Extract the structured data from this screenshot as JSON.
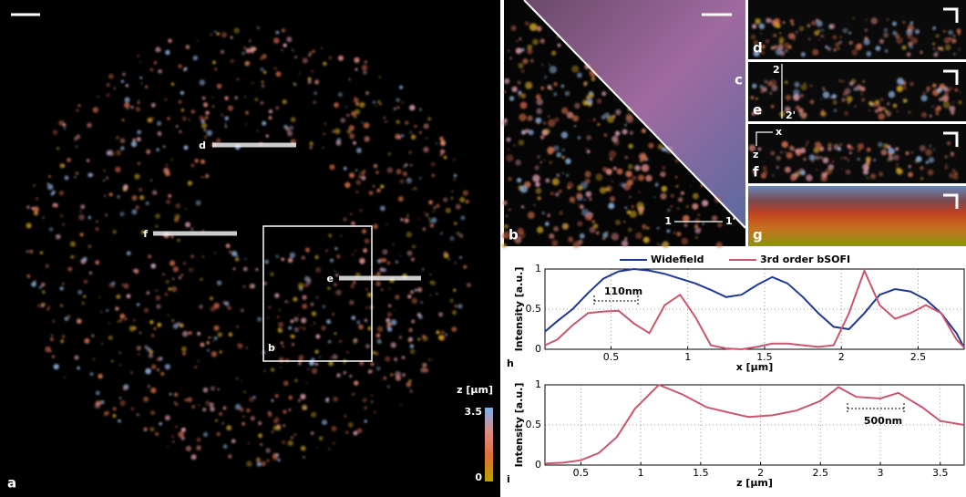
{
  "figure": {
    "panel_a": {
      "label": "a",
      "lines": [
        "d",
        "f",
        "e"
      ],
      "box": "b",
      "colorbar": {
        "label": "z [µm]",
        "ticks": [
          0,
          3.5
        ]
      }
    },
    "panel_b": {
      "label": "b",
      "line_start": "1",
      "line_end": "1'"
    },
    "panel_c": {
      "label": "c"
    },
    "panel_d": {
      "label": "d"
    },
    "panel_e": {
      "label": "e",
      "line_start": "2",
      "line_end": "2'"
    },
    "panel_f": {
      "label": "f",
      "axis_x": "x",
      "axis_z": "z"
    },
    "panel_g": {
      "label": "g"
    }
  },
  "chart_data": [
    {
      "type": "line",
      "label": "h",
      "xlabel": "x [µm]",
      "ylabel": "Intensity [a.u.]",
      "legend": "top",
      "x": [
        0.07,
        0.15,
        0.25,
        0.35,
        0.45,
        0.55,
        0.65,
        0.75,
        0.85,
        0.95,
        1.05,
        1.15,
        1.25,
        1.35,
        1.45,
        1.55,
        1.65,
        1.75,
        1.85,
        1.95,
        2.05,
        2.15,
        2.25,
        2.35,
        2.45,
        2.55,
        2.65,
        2.75,
        2.8
      ],
      "series": [
        {
          "name": "Widefield",
          "color": "#1f3a93",
          "values": [
            0.22,
            0.35,
            0.5,
            0.7,
            0.88,
            0.97,
            1,
            0.98,
            0.94,
            0.88,
            0.82,
            0.74,
            0.65,
            0.68,
            0.8,
            0.9,
            0.82,
            0.65,
            0.45,
            0.28,
            0.25,
            0.45,
            0.68,
            0.75,
            0.72,
            0.62,
            0.45,
            0.2,
            0.02
          ]
        },
        {
          "name": "3rd order bSOFI",
          "color": "#c9566f",
          "values": [
            0.05,
            0.12,
            0.3,
            0.45,
            0.47,
            0.48,
            0.32,
            0.2,
            0.55,
            0.68,
            0.4,
            0.05,
            0.01,
            0,
            0.03,
            0.07,
            0.07,
            0.05,
            0.03,
            0.05,
            0.45,
            0.98,
            0.55,
            0.38,
            0.45,
            0.55,
            0.45,
            0.12,
            0.02
          ]
        }
      ],
      "xlim": [
        0.07,
        2.8
      ],
      "ylim": [
        0,
        1
      ],
      "xticks": [
        0.5,
        1,
        1.5,
        2,
        2.5
      ],
      "yticks": [
        0,
        0.5,
        1
      ],
      "grid": true,
      "annotations": [
        "110nm"
      ]
    },
    {
      "type": "line",
      "label": "i",
      "xlabel": "z [µm]",
      "ylabel": "Intensity [a.u.]",
      "x": [
        0.2,
        0.35,
        0.5,
        0.65,
        0.8,
        0.95,
        1.15,
        1.35,
        1.55,
        1.75,
        1.9,
        2.1,
        2.3,
        2.5,
        2.65,
        2.8,
        3.0,
        3.15,
        3.35,
        3.5,
        3.7
      ],
      "values": [
        0.02,
        0.03,
        0.06,
        0.15,
        0.35,
        0.7,
        1,
        0.88,
        0.72,
        0.65,
        0.6,
        0.62,
        0.68,
        0.8,
        0.97,
        0.85,
        0.83,
        0.9,
        0.72,
        0.55,
        0.5
      ],
      "color": "#c9566f",
      "xlim": [
        0.2,
        3.7
      ],
      "ylim": [
        0,
        1
      ],
      "xticks": [
        0.5,
        1,
        1.5,
        2,
        2.5,
        3,
        3.5
      ],
      "yticks": [
        0,
        0.5,
        1
      ],
      "grid": true,
      "annotations": [
        "500nm"
      ]
    }
  ]
}
